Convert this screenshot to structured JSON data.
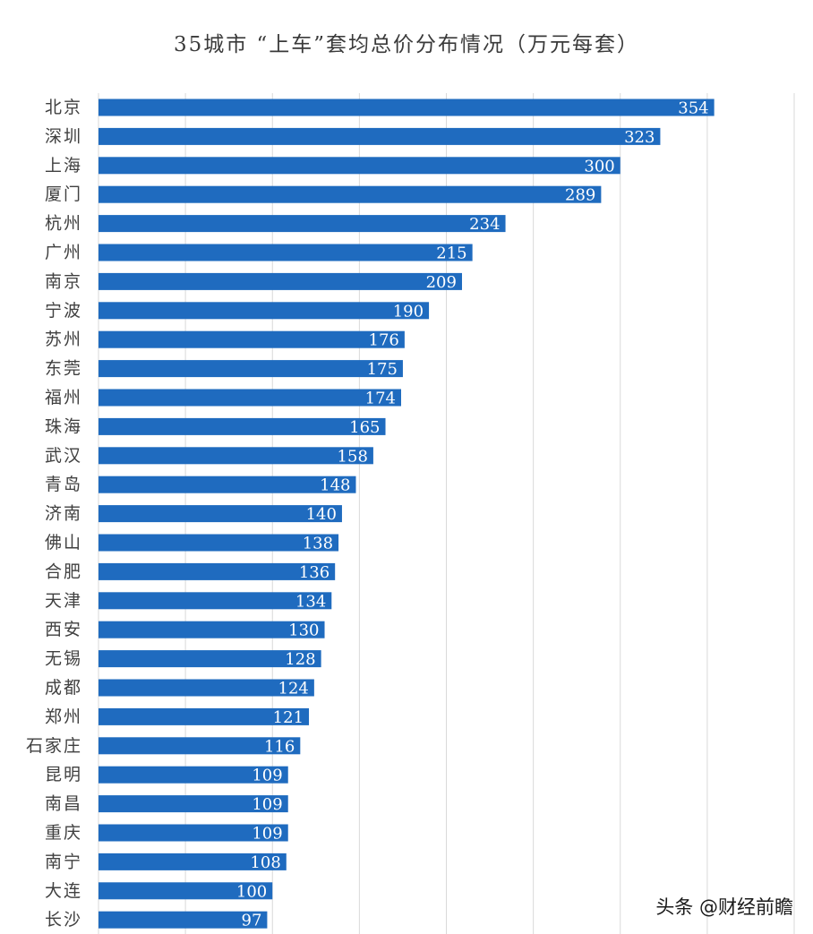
{
  "chart_data": {
    "type": "bar",
    "orientation": "horizontal",
    "title": "35城市 “上车”套均总价分布情况（万元每套）",
    "categories": [
      "北京",
      "深圳",
      "上海",
      "厦门",
      "杭州",
      "广州",
      "南京",
      "宁波",
      "苏州",
      "东莞",
      "福州",
      "珠海",
      "武汉",
      "青岛",
      "济南",
      "佛山",
      "合肥",
      "天津",
      "西安",
      "无锡",
      "成都",
      "郑州",
      "石家庄",
      "昆明",
      "南昌",
      "重庆",
      "南宁",
      "大连",
      "长沙"
    ],
    "values": [
      354,
      323,
      300,
      289,
      234,
      215,
      209,
      190,
      176,
      175,
      174,
      165,
      158,
      148,
      140,
      138,
      136,
      134,
      130,
      128,
      124,
      121,
      116,
      109,
      109,
      109,
      108,
      100,
      97
    ],
    "xlim": [
      0,
      400
    ],
    "grid": true,
    "data_labels": true,
    "bar_color": "#1f6bbf",
    "label_color": "#ffffff",
    "grid_color": "#d9d9d9"
  },
  "watermark": "头条 @财经前瞻"
}
